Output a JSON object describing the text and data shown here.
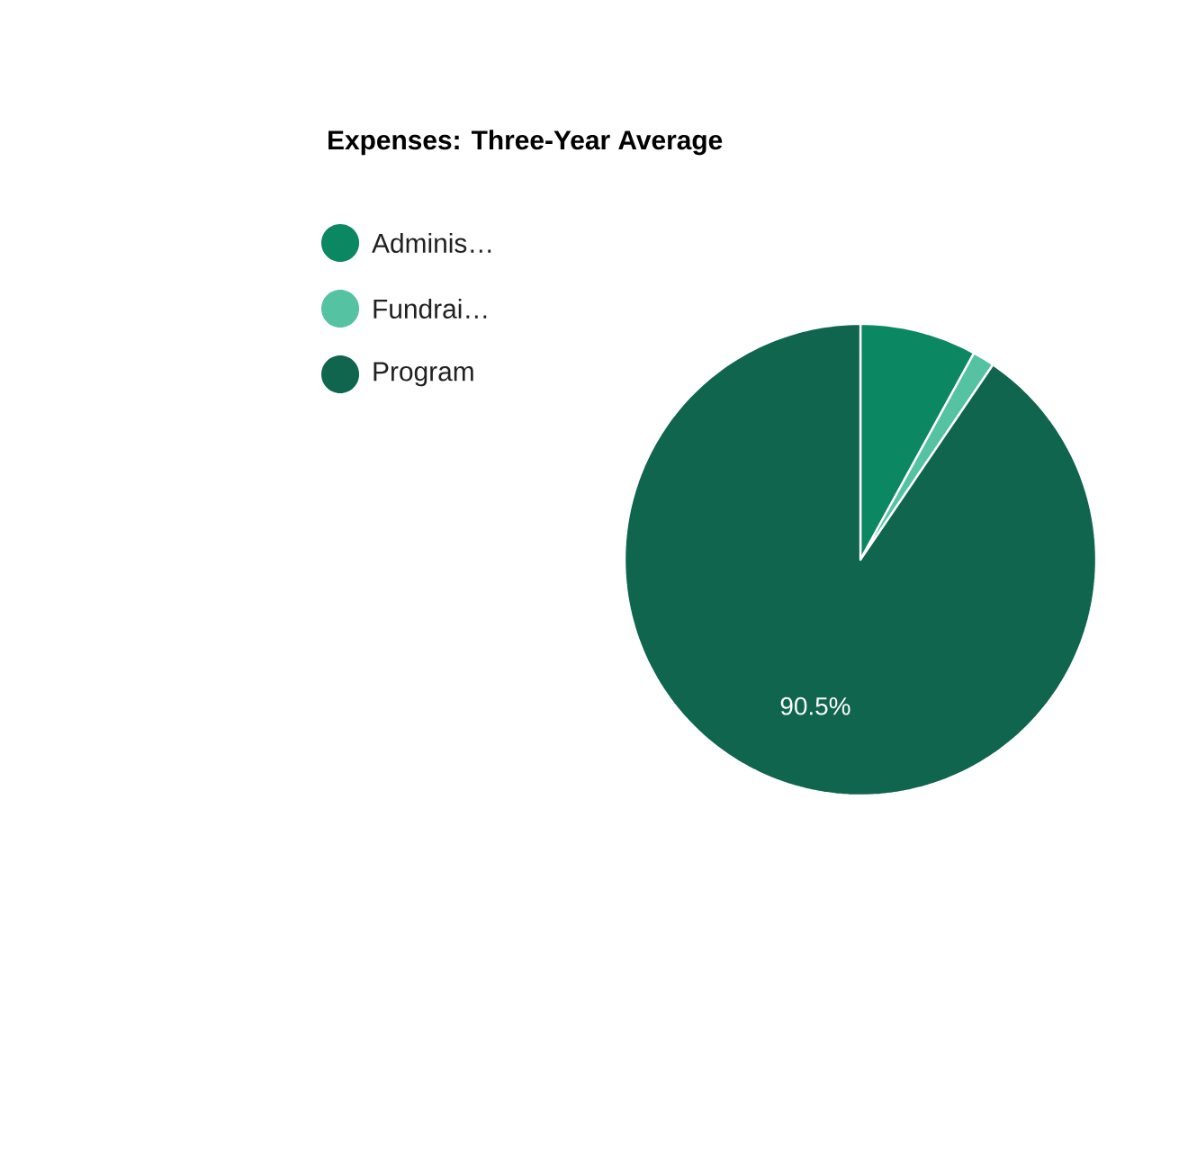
{
  "chart_data": {
    "type": "pie",
    "title": "Expenses: Three-Year Average",
    "categories": [
      "Adminis…",
      "Fundrai…",
      "Program"
    ],
    "values": [
      8.0,
      1.5,
      90.5
    ],
    "colors": [
      "#0b8762",
      "#55c2a2",
      "#10654f"
    ],
    "value_labels": [
      null,
      null,
      "90.5%"
    ],
    "legend": "top left"
  }
}
